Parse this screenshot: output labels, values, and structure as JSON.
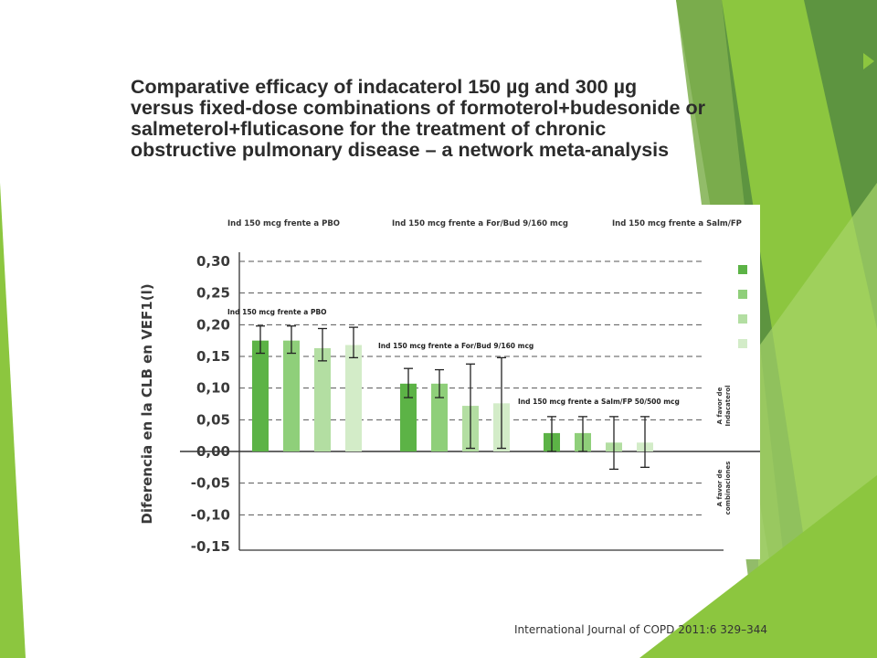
{
  "slide": {
    "title_lines": [
      "Comparative efficacy of indacaterol 150 µg and 300 µg",
      "versus fixed-dose combinations of formoterol+budesonide or",
      "salmeterol+fluticasone for the treatment of chronic",
      "obstructive pulmonary disease – a network meta-analysis"
    ],
    "citation": "International Journal of COPD 2011:6  329–344"
  },
  "colors": {
    "accent_green": "#8cc63f",
    "dark_green": "#4a8a2a",
    "series_1": "#5cb346",
    "series_2": "#8fcf7a",
    "series_3": "#b3dea2",
    "series_4": "#d3ecc8"
  },
  "chart_data": {
    "type": "bar",
    "ylabel": "Diferencia en la CLB en VEF1(l)",
    "ylim": [
      -0.15,
      0.3
    ],
    "yticks": [
      "0,30",
      "0,25",
      "0,20",
      "0,15",
      "0,10",
      "0,05",
      "0,00",
      "-0,05",
      "-0,10",
      "-0,15"
    ],
    "grid": "dashed horizontal",
    "headers": [
      "Ind 150 mcg frente a PBO",
      "Ind 150 mcg frente a For/Bud 9/160 mcg",
      "Ind 150 mcg frente a Salm/FP"
    ],
    "groups": [
      {
        "label": "Ind 150 mcg frente a PBO",
        "values": [
          0.175,
          0.175,
          0.163,
          0.168
        ],
        "err_low": [
          0.155,
          0.155,
          0.143,
          0.148
        ],
        "err_high": [
          0.198,
          0.198,
          0.194,
          0.196
        ]
      },
      {
        "label": "Ind 150 mcg frente a For/Bud 9/160 mcg",
        "values": [
          0.107,
          0.107,
          0.072,
          0.076
        ],
        "err_low": [
          0.085,
          0.085,
          0.005,
          0.005
        ],
        "err_high": [
          0.131,
          0.129,
          0.138,
          0.148
        ]
      },
      {
        "label": "Ind 150 mcg frente a Salm/FP 50/500 mcg",
        "values": [
          0.029,
          0.029,
          0.014,
          0.014
        ],
        "err_low": [
          0.0,
          0.0,
          -0.028,
          -0.025
        ],
        "err_high": [
          0.055,
          0.055,
          0.055,
          0.055
        ]
      }
    ],
    "side_labels": {
      "favor_indacaterol": [
        "A favor de",
        "Indacaterol"
      ],
      "favor_combinations": [
        "A favor de",
        "combinaciones"
      ]
    }
  }
}
